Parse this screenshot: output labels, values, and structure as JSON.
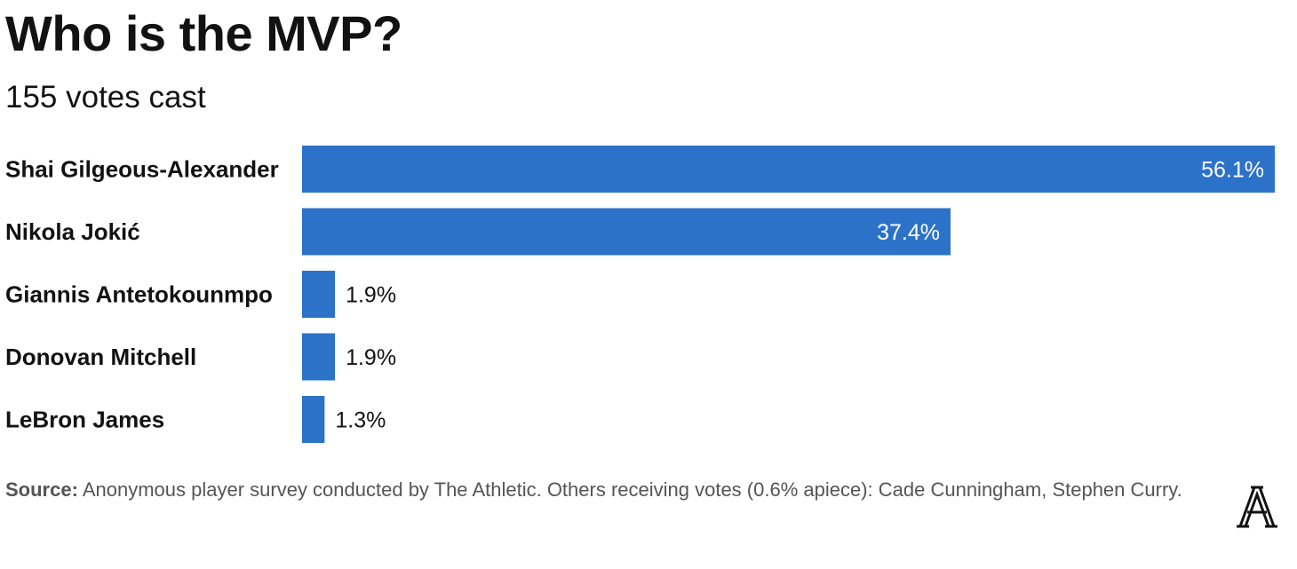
{
  "title": "Who is the MVP?",
  "subtitle": "155 votes cast",
  "source": {
    "label": "Source:",
    "text": " Anonymous player survey conducted by The Athletic. Others receiving votes (0.6% apiece): Cade Cunningham, Stephen Curry."
  },
  "logo": {
    "icon": "the-athletic-logo-icon",
    "letter": "A"
  },
  "colors": {
    "bar": "#2c72c9",
    "label_inside": "#ffffff",
    "label_outside": "#121212"
  },
  "chart_data": {
    "type": "bar",
    "orientation": "horizontal",
    "categories": [
      "Shai Gilgeous-Alexander",
      "Nikola Jokić",
      "Giannis Antetokounmpo",
      "Donovan Mitchell",
      "LeBron James"
    ],
    "values": [
      56.1,
      37.4,
      1.9,
      1.9,
      1.3
    ],
    "labels": [
      "56.1%",
      "37.4%",
      "1.9%",
      "1.9%",
      "1.3%"
    ],
    "unit": "%",
    "title": "Who is the MVP?",
    "subtitle": "155 votes cast",
    "xlim": [
      0,
      56.1
    ],
    "grid": false,
    "legend": "none"
  }
}
